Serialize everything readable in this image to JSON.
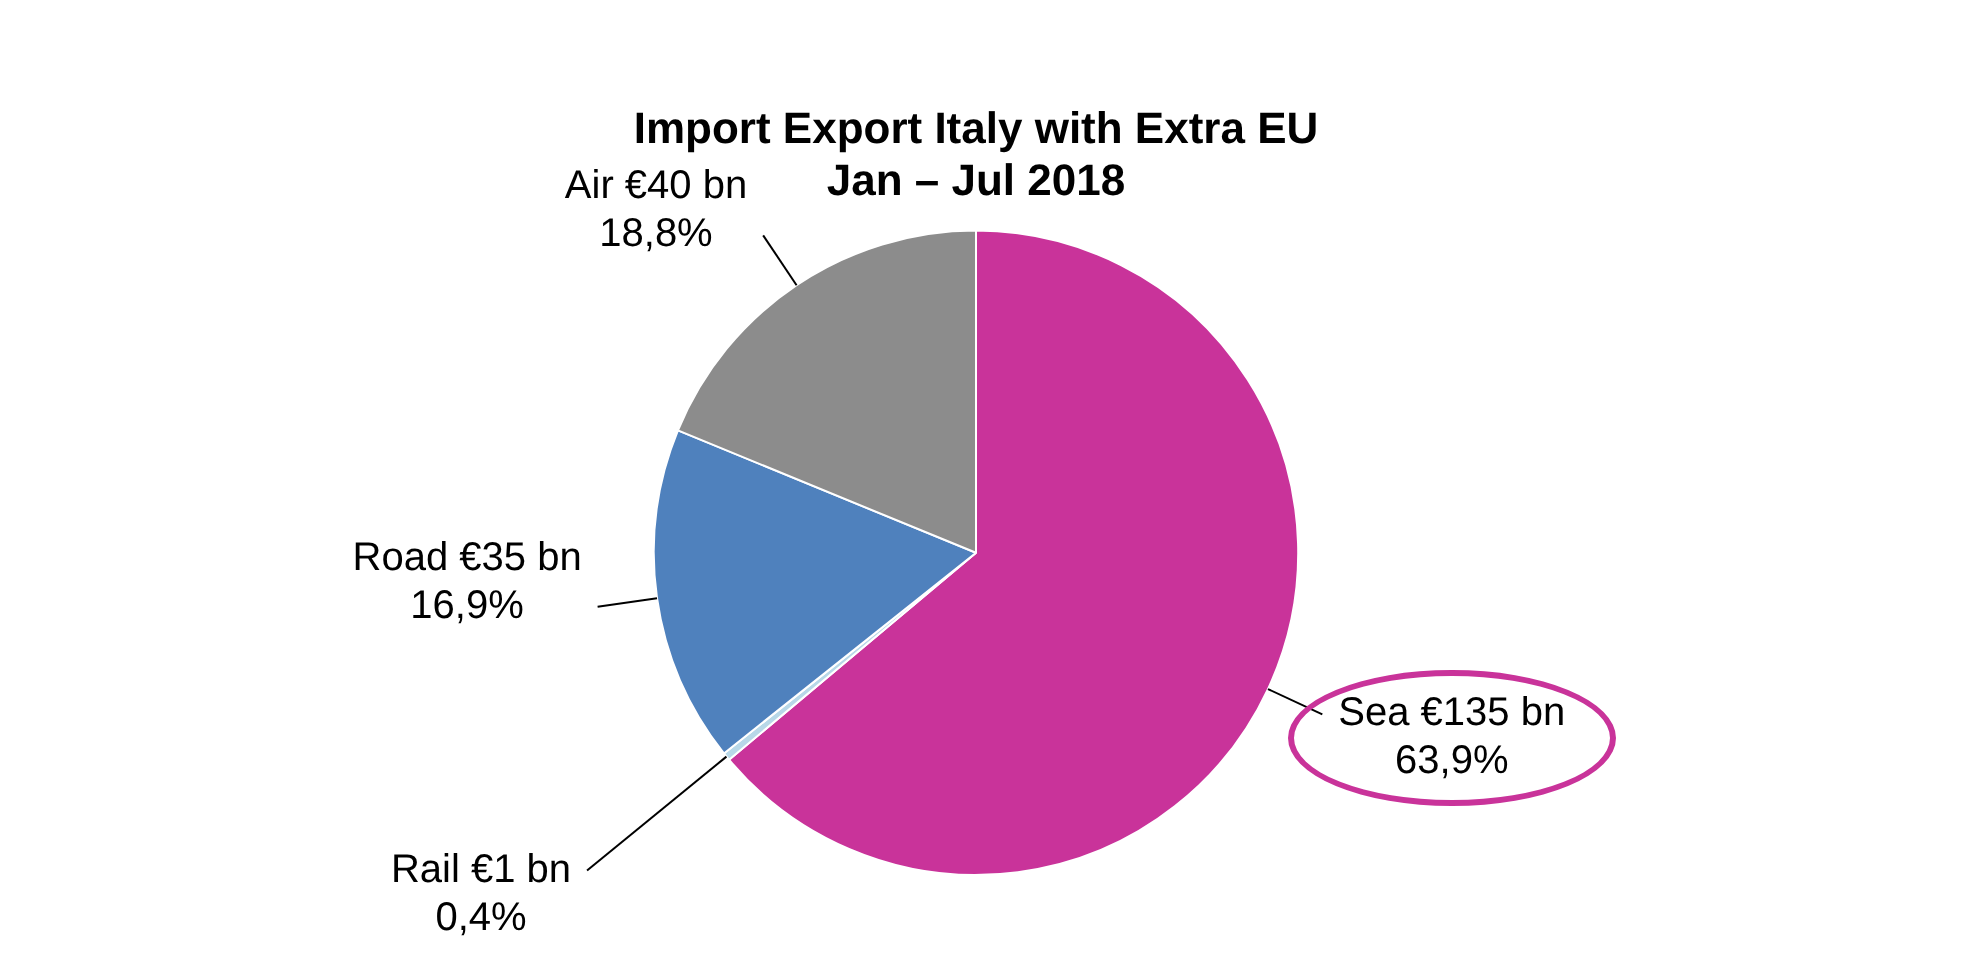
{
  "chart_data": {
    "type": "pie",
    "title": "Import Export Italy with Extra EU\nJan – Jul 2018",
    "categories": [
      "Sea €135 bn",
      "Rail €1 bn",
      "Road €35 bn",
      "Air €40 bn"
    ],
    "values": [
      63.9,
      0.4,
      16.9,
      18.8
    ],
    "colors": [
      "#c9339a",
      "#b8d8e8",
      "#4f81bd",
      "#8c8c8c"
    ],
    "value_labels": [
      "63,9%",
      "0,4%",
      "16,9%",
      "18,8%"
    ],
    "legend": false
  }
}
